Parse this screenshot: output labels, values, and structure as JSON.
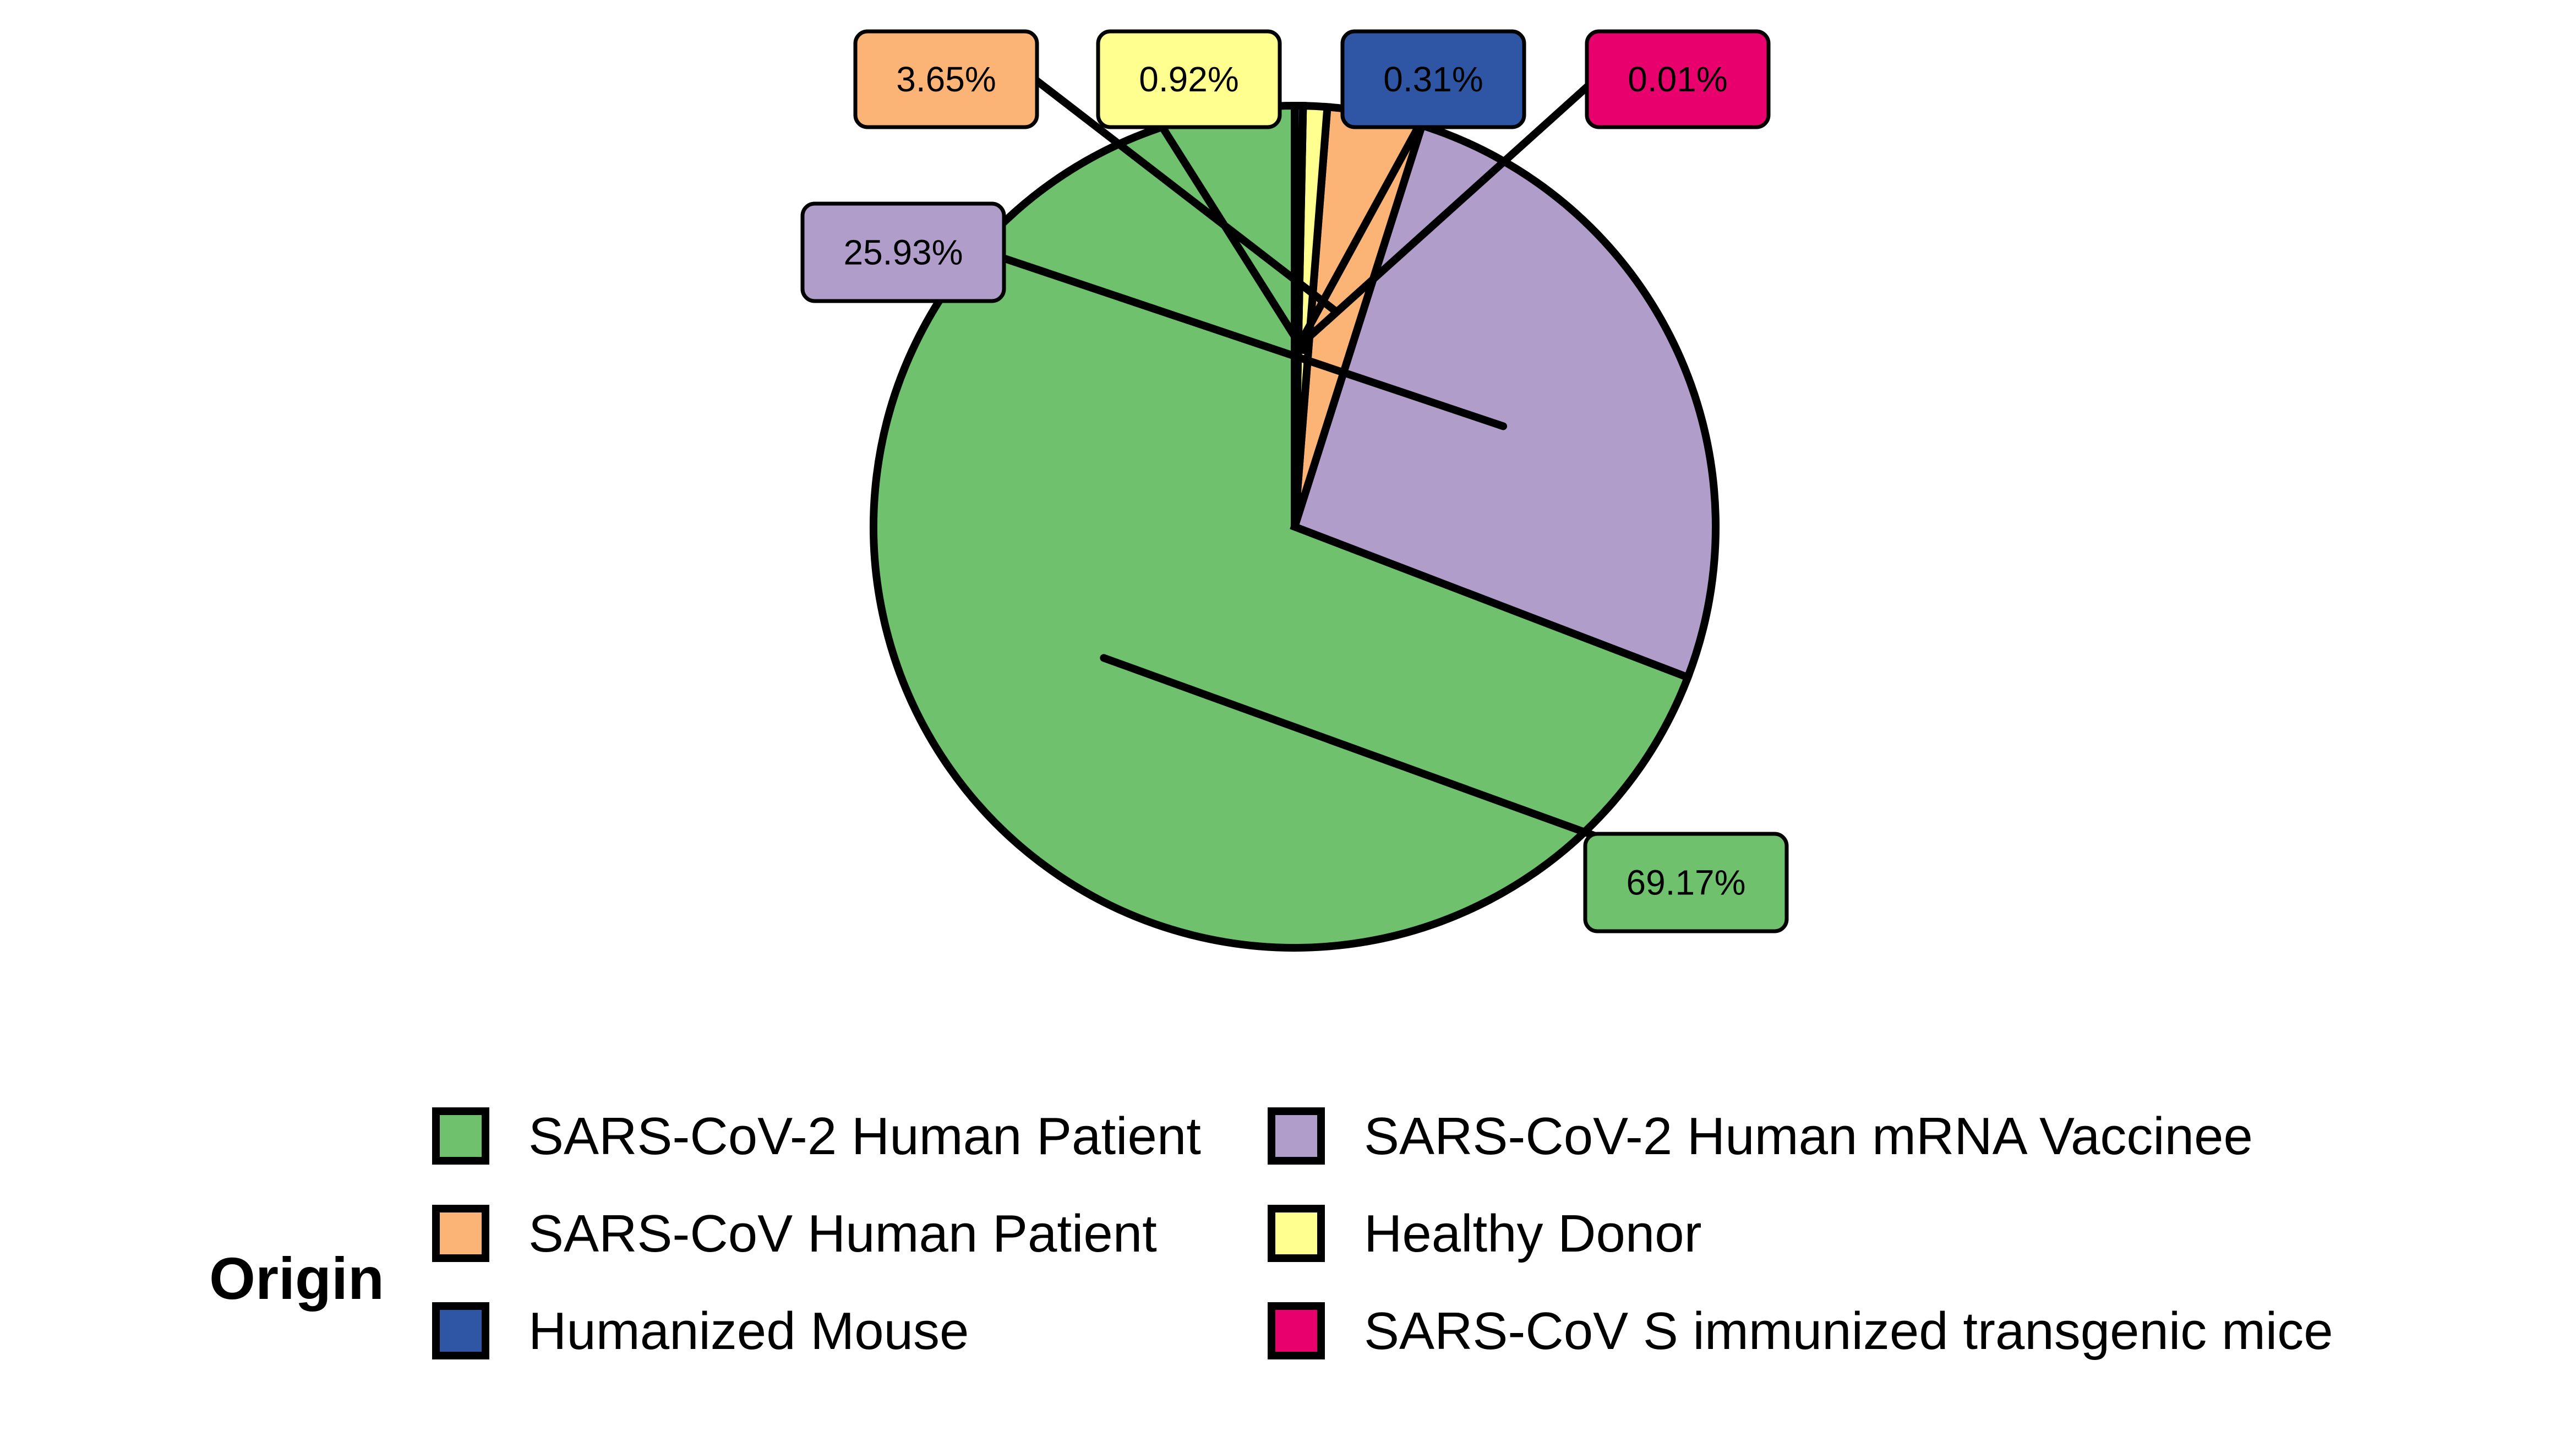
{
  "chart_data": {
    "type": "pie",
    "title": "",
    "legend": {
      "title": "Origin",
      "placement": "bottom"
    },
    "slices": [
      {
        "label": "SARS-CoV-2 Human Patient",
        "value": 69.17,
        "display": "69.17%",
        "color": "#6fc16d"
      },
      {
        "label": "SARS-CoV-2 Human mRNA Vaccinee",
        "value": 25.93,
        "display": "25.93%",
        "color": "#b09dca"
      },
      {
        "label": "SARS-CoV Human Patient",
        "value": 3.65,
        "display": "3.65%",
        "color": "#fbb476"
      },
      {
        "label": "Healthy Donor",
        "value": 0.92,
        "display": "0.92%",
        "color": "#ffff8f"
      },
      {
        "label": "Humanized Mouse",
        "value": 0.31,
        "display": "0.31%",
        "color": "#2f56a4"
      },
      {
        "label": "SARS-CoV S immunized transgenic mice",
        "value": 0.01,
        "display": "0.01%",
        "color": "#e8006d"
      }
    ]
  }
}
